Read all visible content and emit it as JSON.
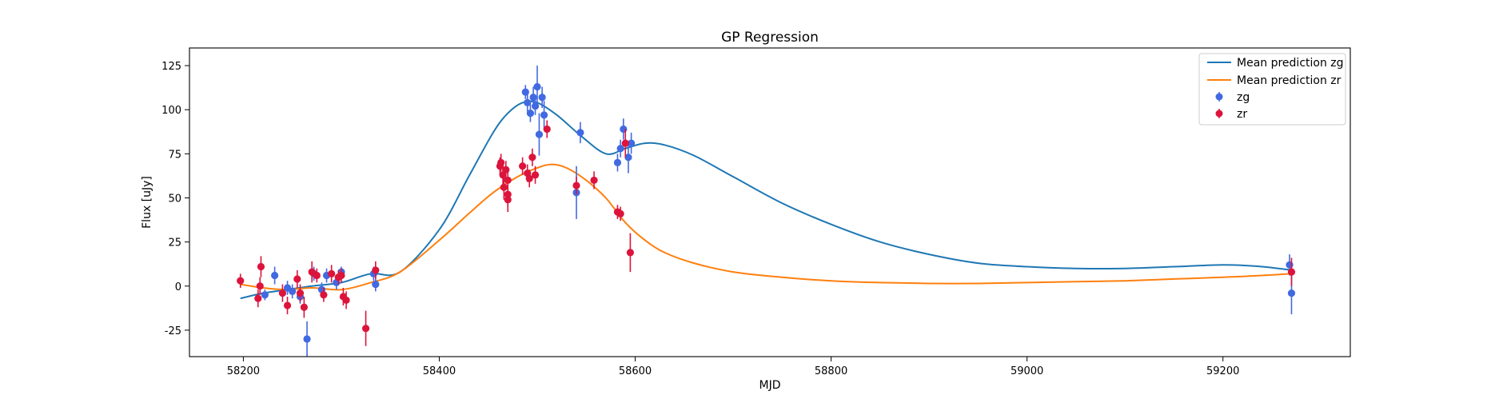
{
  "chart_data": {
    "type": "scatter",
    "title": "GP Regression",
    "xlabel": "MJD",
    "ylabel": "Flux [uJy]",
    "xlim": [
      58145,
      59330
    ],
    "ylim": [
      -40,
      135
    ],
    "xticks": [
      58200,
      58400,
      58600,
      58800,
      59000,
      59200
    ],
    "yticks": [
      -25,
      0,
      25,
      50,
      75,
      100,
      125
    ],
    "grid": false,
    "legend_position": "top-right",
    "colors": {
      "zg_line": "#1f77b4",
      "zr_line": "#ff7f0e",
      "zg_points": "#4169e1",
      "zr_points": "#dc143c"
    },
    "lines": [
      {
        "name": "Mean prediction zg",
        "color": "#1f77b4",
        "x": [
          58197,
          58220,
          58245,
          58270,
          58300,
          58330,
          58360,
          58400,
          58430,
          58455,
          58470,
          58485,
          58500,
          58520,
          58545,
          58570,
          58590,
          58610,
          58630,
          58660,
          58700,
          58750,
          58800,
          58850,
          58900,
          58950,
          59000,
          59050,
          59100,
          59150,
          59200,
          59240,
          59270
        ],
        "y": [
          -7,
          -4,
          -2,
          0,
          2,
          7,
          8,
          32,
          62,
          87,
          98,
          104,
          104,
          97,
          85,
          75,
          78,
          81,
          80,
          74,
          62,
          47,
          35,
          25,
          18,
          13,
          11,
          10,
          10,
          11,
          12,
          11,
          9
        ]
      },
      {
        "name": "Mean prediction zr",
        "color": "#ff7f0e",
        "x": [
          58197,
          58220,
          58245,
          58270,
          58300,
          58330,
          58360,
          58400,
          58430,
          58455,
          58480,
          58500,
          58515,
          58530,
          58550,
          58570,
          58590,
          58610,
          58630,
          58660,
          58700,
          58750,
          58800,
          58850,
          58900,
          58950,
          59000,
          59050,
          59100,
          59150,
          59200,
          59240,
          59270
        ],
        "y": [
          1,
          -1,
          -2,
          -1,
          -2,
          2,
          8,
          26,
          41,
          53,
          62,
          67,
          69,
          67,
          60,
          50,
          36,
          26,
          19,
          13,
          8,
          5,
          3,
          2,
          1.5,
          1.5,
          2,
          2.5,
          3,
          4,
          5,
          6,
          7
        ]
      }
    ],
    "series": [
      {
        "name": "zg",
        "color": "#4169e1",
        "points": [
          [
            58222,
            -5,
            3
          ],
          [
            58232,
            6,
            5
          ],
          [
            58245,
            -1,
            4
          ],
          [
            58250,
            -3,
            4
          ],
          [
            58258,
            -6,
            4
          ],
          [
            58265,
            -30,
            10
          ],
          [
            58272,
            7,
            4
          ],
          [
            58280,
            -2,
            4
          ],
          [
            58285,
            6,
            4
          ],
          [
            58295,
            2,
            4
          ],
          [
            58300,
            8,
            3
          ],
          [
            58335,
            1,
            4
          ],
          [
            58333,
            7,
            4
          ],
          [
            58488,
            110,
            4
          ],
          [
            58490,
            104,
            5
          ],
          [
            58493,
            98,
            5
          ],
          [
            58496,
            107,
            6
          ],
          [
            58498,
            102,
            5
          ],
          [
            58500,
            113,
            12
          ],
          [
            58502,
            86,
            12
          ],
          [
            58505,
            107,
            6
          ],
          [
            58507,
            97,
            8
          ],
          [
            58544,
            87,
            6
          ],
          [
            58540,
            53,
            15
          ],
          [
            58582,
            70,
            5
          ],
          [
            58585,
            78,
            5
          ],
          [
            58588,
            89,
            6
          ],
          [
            58593,
            73,
            9
          ],
          [
            58596,
            81,
            6
          ],
          [
            59268,
            12,
            6
          ],
          [
            59270,
            -4,
            12
          ]
        ]
      },
      {
        "name": "zr",
        "color": "#dc143c",
        "points": [
          [
            58197,
            3,
            4
          ],
          [
            58215,
            -7,
            5
          ],
          [
            58217,
            0,
            5
          ],
          [
            58218,
            11,
            6
          ],
          [
            58240,
            -4,
            5
          ],
          [
            58245,
            -11,
            5
          ],
          [
            58255,
            4,
            5
          ],
          [
            58258,
            -4,
            5
          ],
          [
            58262,
            -12,
            6
          ],
          [
            58270,
            8,
            6
          ],
          [
            58275,
            6,
            4
          ],
          [
            58282,
            -5,
            4
          ],
          [
            58290,
            7,
            5
          ],
          [
            58297,
            5,
            4
          ],
          [
            58300,
            6,
            4
          ],
          [
            58302,
            -6,
            5
          ],
          [
            58305,
            -8,
            5
          ],
          [
            58325,
            -24,
            10
          ],
          [
            58335,
            9,
            5
          ],
          [
            58462,
            68,
            5
          ],
          [
            58463,
            70,
            5
          ],
          [
            58465,
            63,
            6
          ],
          [
            58466,
            56,
            7
          ],
          [
            58468,
            66,
            5
          ],
          [
            58470,
            60,
            6
          ],
          [
            58470,
            52,
            7
          ],
          [
            58470,
            49,
            7
          ],
          [
            58485,
            68,
            5
          ],
          [
            58490,
            64,
            5
          ],
          [
            58492,
            61,
            5
          ],
          [
            58495,
            73,
            5
          ],
          [
            58498,
            63,
            5
          ],
          [
            58510,
            89,
            5
          ],
          [
            58540,
            57,
            5
          ],
          [
            58558,
            60,
            5
          ],
          [
            58582,
            42,
            4
          ],
          [
            58585,
            41,
            4
          ],
          [
            58590,
            81,
            8
          ],
          [
            58595,
            19,
            11
          ],
          [
            59270,
            8,
            8
          ]
        ]
      }
    ]
  }
}
